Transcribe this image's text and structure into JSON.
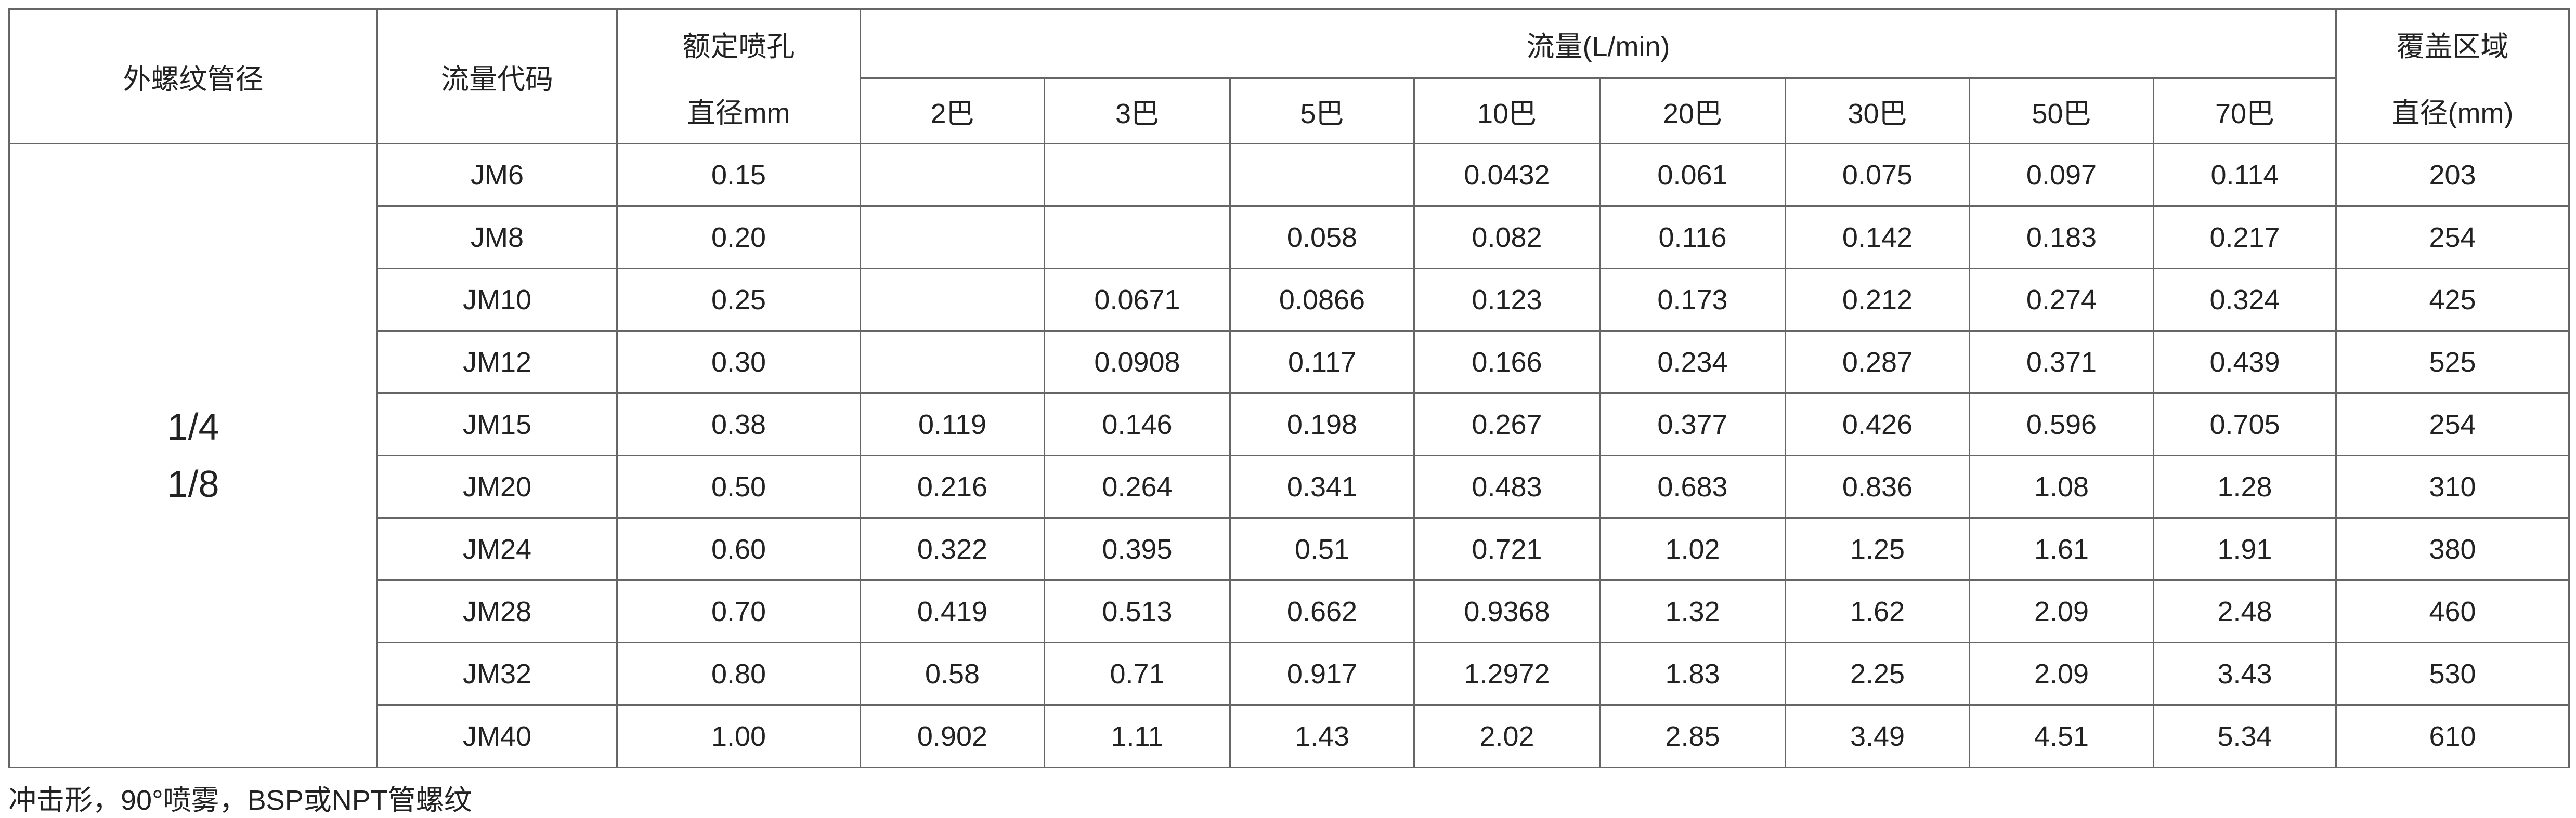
{
  "table": {
    "headers": {
      "thread": "外螺纹管径",
      "code": "流量代码",
      "orifice": [
        "额定喷孔",
        "直径mm"
      ],
      "flow": "流量(L/min)",
      "pressures": [
        "2巴",
        "3巴",
        "5巴",
        "10巴",
        "20巴",
        "30巴",
        "50巴",
        "70巴"
      ],
      "coverage": [
        "覆盖区域",
        "直径(mm)"
      ]
    },
    "thread_sizes": [
      "1/4",
      "1/8"
    ],
    "rows": [
      [
        "JM6",
        "0.15",
        null,
        null,
        null,
        "0.0432",
        "0.061",
        "0.075",
        "0.097",
        "0.114",
        "203"
      ],
      [
        "JM8",
        "0.20",
        null,
        null,
        "0.058",
        "0.082",
        "0.116",
        "0.142",
        "0.183",
        "0.217",
        "254"
      ],
      [
        "JM10",
        "0.25",
        null,
        "0.0671",
        "0.0866",
        "0.123",
        "0.173",
        "0.212",
        "0.274",
        "0.324",
        "425"
      ],
      [
        "JM12",
        "0.30",
        null,
        "0.0908",
        "0.117",
        "0.166",
        "0.234",
        "0.287",
        "0.371",
        "0.439",
        "525"
      ],
      [
        "JM15",
        "0.38",
        "0.119",
        "0.146",
        "0.198",
        "0.267",
        "0.377",
        "0.426",
        "0.596",
        "0.705",
        "254"
      ],
      [
        "JM20",
        "0.50",
        "0.216",
        "0.264",
        "0.341",
        "0.483",
        "0.683",
        "0.836",
        "1.08",
        "1.28",
        "310"
      ],
      [
        "JM24",
        "0.60",
        "0.322",
        "0.395",
        "0.51",
        "0.721",
        "1.02",
        "1.25",
        "1.61",
        "1.91",
        "380"
      ],
      [
        "JM28",
        "0.70",
        "0.419",
        "0.513",
        "0.662",
        "0.9368",
        "1.32",
        "1.62",
        "2.09",
        "2.48",
        "460"
      ],
      [
        "JM32",
        "0.80",
        "0.58",
        "0.71",
        "0.917",
        "1.2972",
        "1.83",
        "2.25",
        "2.09",
        "3.43",
        "530"
      ],
      [
        "JM40",
        "1.00",
        "0.902",
        "1.11",
        "1.43",
        "2.02",
        "2.85",
        "3.49",
        "4.51",
        "5.34",
        "610"
      ]
    ]
  },
  "note": "冲击形，90°喷雾，BSP或NPT管螺纹"
}
